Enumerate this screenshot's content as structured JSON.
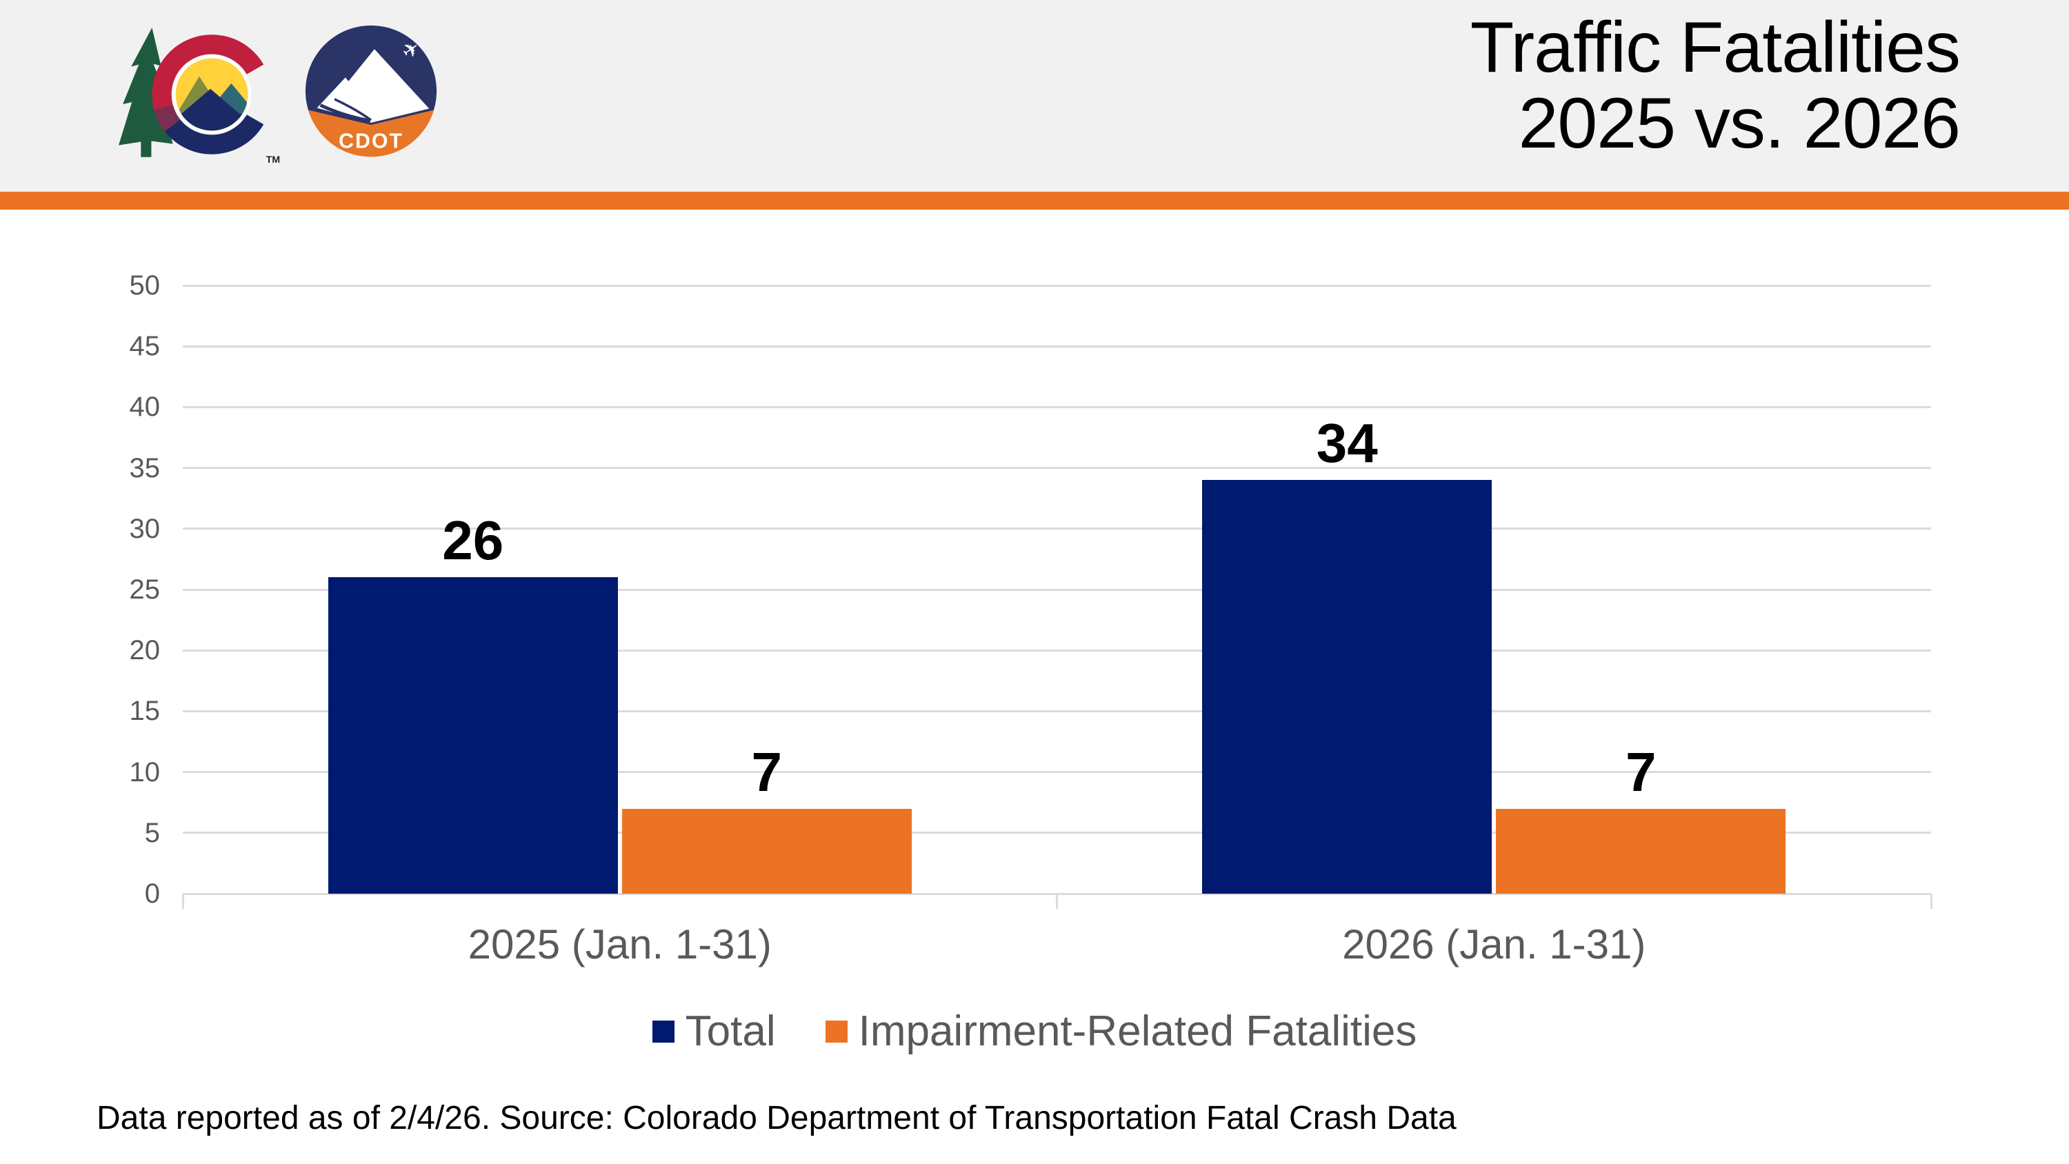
{
  "header": {
    "title_line1": "Traffic Fatalities",
    "title_line2": "2025 vs. 2026",
    "colorado_logo_tm": "TM",
    "cdot_logo_text": "CDOT"
  },
  "chart_data": {
    "type": "bar",
    "title": "Traffic Fatalities 2025 vs. 2026",
    "categories": [
      "2025 (Jan. 1-31)",
      "2026 (Jan. 1-31)"
    ],
    "series": [
      {
        "name": "Total",
        "color": "#001A70",
        "values": [
          26,
          34
        ]
      },
      {
        "name": "Impairment-Related Fatalities",
        "color": "#EC7323",
        "values": [
          7,
          7
        ]
      }
    ],
    "ylim": [
      0,
      50
    ],
    "ytick_step": 5,
    "grid": true,
    "legend_position": "bottom",
    "bar_value_labels": [
      [
        26,
        34
      ],
      [
        7,
        7
      ]
    ]
  },
  "footer": {
    "source_note": "Data reported as of 2/4/26. Source: Colorado Department of Transportation Fatal Crash Data"
  },
  "colors": {
    "accent_orange": "#EC7323",
    "bar_navy": "#001A70",
    "header_background": "#F1F1F2",
    "gridline": "#DBDBDB",
    "axis_text": "#595959"
  }
}
